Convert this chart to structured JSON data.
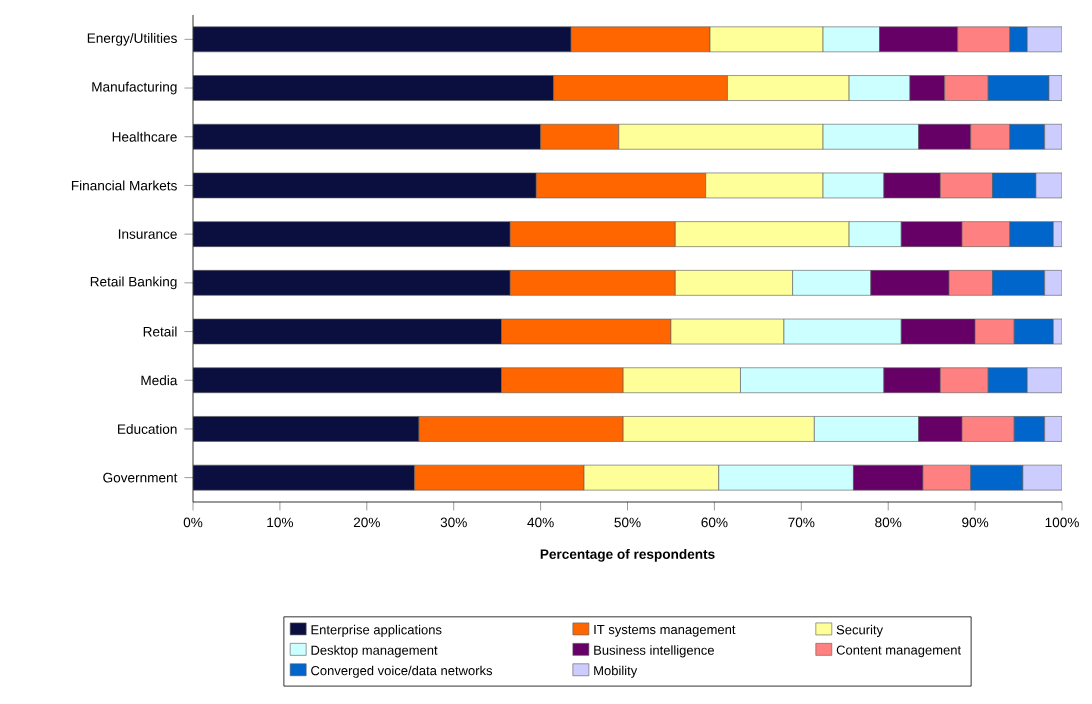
{
  "chart_data": {
    "type": "bar",
    "orientation": "horizontal",
    "stacked": true,
    "xlabel": "Percentage of respondents",
    "categories": [
      "Energy/Utilities",
      "Manufacturing",
      "Healthcare",
      "Financial Markets",
      "Insurance",
      "Retail Banking",
      "Retail",
      "Media",
      "Education",
      "Government"
    ],
    "series": [
      {
        "name": "Enterprise applications",
        "color": "#0a0f3f",
        "values": [
          43.5,
          41.5,
          40,
          39.5,
          36.5,
          36.5,
          35.5,
          35.5,
          26,
          25.5
        ]
      },
      {
        "name": "IT systems management",
        "color": "#ff6600",
        "values": [
          16,
          20,
          9,
          19.5,
          19,
          19,
          19.5,
          14,
          23.5,
          19.5
        ]
      },
      {
        "name": "Security",
        "color": "#ffff99",
        "values": [
          13,
          14,
          23.5,
          13.5,
          20,
          13.5,
          13,
          13.5,
          22,
          15.5
        ]
      },
      {
        "name": "Desktop management",
        "color": "#ccffff",
        "values": [
          6.5,
          7,
          11,
          7,
          6,
          9,
          13.5,
          16.5,
          12,
          15.5
        ]
      },
      {
        "name": "Business intelligence",
        "color": "#660066",
        "values": [
          9,
          4,
          6,
          6.5,
          7,
          9,
          8.5,
          6.5,
          5,
          8
        ]
      },
      {
        "name": "Content management",
        "color": "#ff8080",
        "values": [
          6,
          5,
          4.5,
          6,
          5.5,
          5,
          4.5,
          5.5,
          6,
          5.5
        ]
      },
      {
        "name": "Converged voice/data networks",
        "color": "#0066cc",
        "values": [
          2,
          7,
          4,
          5,
          5,
          6,
          4.5,
          4.5,
          3.5,
          6
        ]
      },
      {
        "name": "Mobility",
        "color": "#ccccff",
        "values": [
          4,
          1.5,
          2,
          3,
          1,
          2,
          1,
          4,
          2,
          4.5
        ]
      }
    ],
    "xlim": [
      0,
      100
    ],
    "xticks": [
      {
        "value": 0,
        "label": "0%"
      },
      {
        "value": 10,
        "label": "10%"
      },
      {
        "value": 20,
        "label": "20%"
      },
      {
        "value": 30,
        "label": "30%"
      },
      {
        "value": 40,
        "label": "40%"
      },
      {
        "value": 50,
        "label": "50%"
      },
      {
        "value": 60,
        "label": "60%"
      },
      {
        "value": 70,
        "label": "70%"
      },
      {
        "value": 80,
        "label": "80%"
      },
      {
        "value": 90,
        "label": "90%"
      },
      {
        "value": 100,
        "label": "100%"
      }
    ],
    "grid": false,
    "legend": "bottom"
  }
}
